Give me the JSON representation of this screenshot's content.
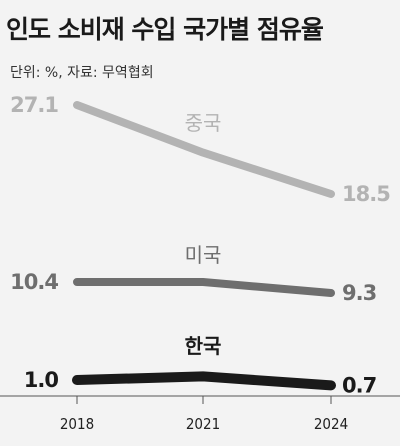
{
  "chart_data": {
    "type": "line",
    "title": "인도 소비재 수입 국가별 점유율",
    "subtitle": "단위: %, 자료: 무역협회",
    "categories": [
      "2018",
      "2021",
      "2024"
    ],
    "series": [
      {
        "name": "중국",
        "values": [
          27.1,
          22.5,
          18.5
        ],
        "labels": [
          "27.1",
          "",
          "18.5"
        ],
        "color": "#b3b3b3"
      },
      {
        "name": "미국",
        "values": [
          10.4,
          10.4,
          9.3
        ],
        "labels": [
          "10.4",
          "",
          "9.3"
        ],
        "color": "#6e6e6e"
      },
      {
        "name": "한국",
        "values": [
          1.0,
          1.2,
          0.7
        ],
        "labels": [
          "1.0",
          "",
          "0.7"
        ],
        "color": "#1a1a1a"
      }
    ]
  }
}
